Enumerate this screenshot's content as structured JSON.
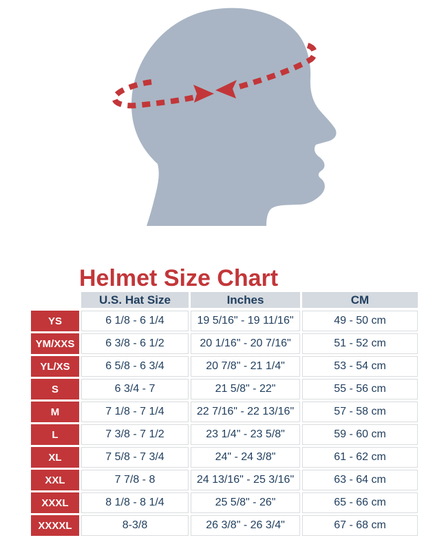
{
  "page": {
    "title": "Helmet Size Chart"
  },
  "colors": {
    "accent_red": "#c23639",
    "text_navy": "#22405f",
    "header_bg": "#d5dae0",
    "head_fill": "#a9b5c4",
    "cell_border": "#d9dcdf"
  },
  "illustration": {
    "description": "head-profile-silhouette-with-measuring-tape",
    "icons": [
      "head-profile-icon",
      "measuring-tape-dashed-line-icon",
      "arrow-right-icon",
      "arrow-left-icon"
    ]
  },
  "chart_data": {
    "type": "table",
    "title": "Helmet Size Chart",
    "columns": [
      "U.S. Hat Size",
      "Inches",
      "CM"
    ],
    "rows": [
      {
        "size": "YS",
        "us_hat_size": "6 1/8 - 6 1/4",
        "inches": "19 5/16\" - 19 11/16\"",
        "cm": "49 - 50 cm"
      },
      {
        "size": "YM/XXS",
        "us_hat_size": "6 3/8 - 6 1/2",
        "inches": "20 1/16\" - 20 7/16\"",
        "cm": "51 - 52 cm"
      },
      {
        "size": "YL/XS",
        "us_hat_size": "6 5/8 - 6 3/4",
        "inches": "20 7/8\" - 21 1/4\"",
        "cm": "53 - 54 cm"
      },
      {
        "size": "S",
        "us_hat_size": "6 3/4 - 7",
        "inches": "21 5/8\" - 22\"",
        "cm": "55 - 56 cm"
      },
      {
        "size": "M",
        "us_hat_size": "7 1/8 - 7 1/4",
        "inches": "22 7/16\" - 22 13/16\"",
        "cm": "57 - 58 cm"
      },
      {
        "size": "L",
        "us_hat_size": "7 3/8 - 7 1/2",
        "inches": "23 1/4\" - 23 5/8\"",
        "cm": "59 - 60 cm"
      },
      {
        "size": "XL",
        "us_hat_size": "7 5/8 - 7 3/4",
        "inches": "24\" - 24 3/8\"",
        "cm": "61 - 62 cm"
      },
      {
        "size": "XXL",
        "us_hat_size": "7 7/8 - 8",
        "inches": "24 13/16\" - 25 3/16\"",
        "cm": "63 - 64 cm"
      },
      {
        "size": "XXXL",
        "us_hat_size": "8 1/8 - 8 1/4",
        "inches": "25 5/8\" - 26\"",
        "cm": "65 - 66 cm"
      },
      {
        "size": "XXXXL",
        "us_hat_size": "8-3/8",
        "inches": "26 3/8\" - 26 3/4\"",
        "cm": "67 - 68 cm"
      }
    ]
  }
}
